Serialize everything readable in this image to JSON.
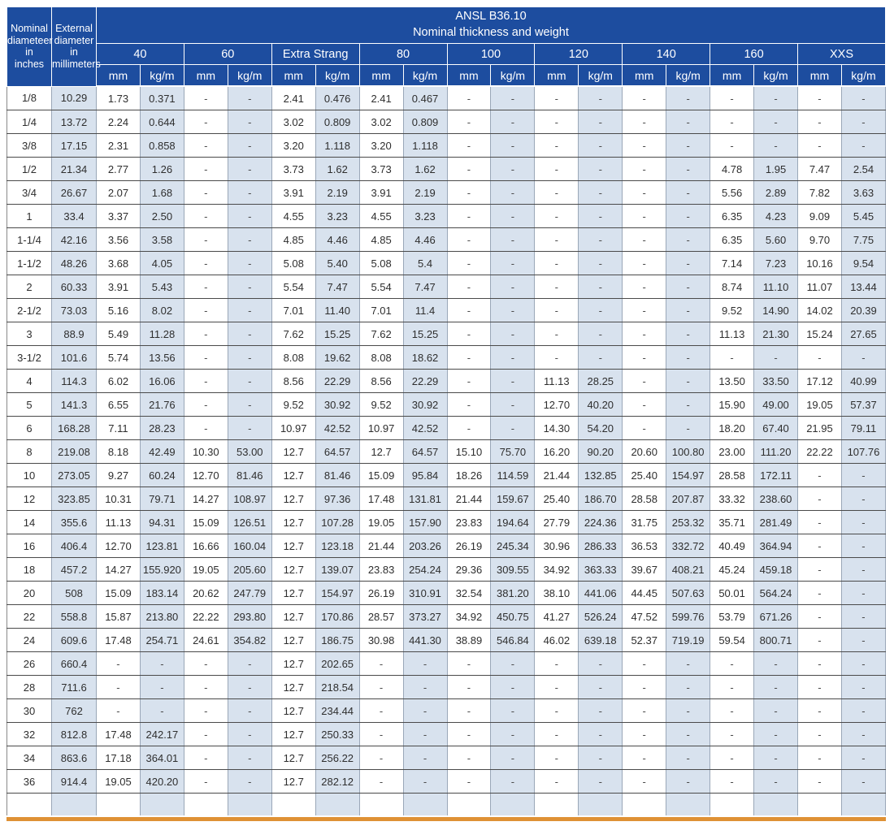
{
  "colors": {
    "header_blue": "#1d4d9f",
    "shade_blue": "#d8e2ee",
    "accent_orange": "#df9135",
    "h_border": "#4a4a4a",
    "v_border": "#9aa7b8"
  },
  "header": {
    "nominal": "Nominal\ndiameteer\nin\ninches",
    "external": "External\ndiameter\nin\nmillimeters",
    "title_line1": "ANSL B36.10",
    "title_line2": "Nominal thickness and weight"
  },
  "table": {
    "groups": [
      "40",
      "60",
      "Extra Strang",
      "80",
      "100",
      "120",
      "140",
      "160",
      "XXS"
    ],
    "units": [
      "mm",
      "kg/m"
    ],
    "rows": [
      {
        "size": "1/8",
        "od": "10.29",
        "v": [
          "1.73",
          "0.371",
          "-",
          "-",
          "2.41",
          "0.476",
          "2.41",
          "0.467",
          "-",
          "-",
          "-",
          "-",
          "-",
          "-",
          "-",
          "-",
          "-",
          "-"
        ]
      },
      {
        "size": "1/4",
        "od": "13.72",
        "v": [
          "2.24",
          "0.644",
          "-",
          "-",
          "3.02",
          "0.809",
          "3.02",
          "0.809",
          "-",
          "-",
          "-",
          "-",
          "-",
          "-",
          "-",
          "-",
          "-",
          "-"
        ]
      },
      {
        "size": "3/8",
        "od": "17.15",
        "v": [
          "2.31",
          "0.858",
          "-",
          "-",
          "3.20",
          "1.118",
          "3.20",
          "1.118",
          "-",
          "-",
          "-",
          "-",
          "-",
          "-",
          "-",
          "-",
          "-",
          "-"
        ]
      },
      {
        "size": "1/2",
        "od": "21.34",
        "v": [
          "2.77",
          "1.26",
          "-",
          "-",
          "3.73",
          "1.62",
          "3.73",
          "1.62",
          "-",
          "-",
          "-",
          "-",
          "-",
          "-",
          "4.78",
          "1.95",
          "7.47",
          "2.54"
        ]
      },
      {
        "size": "3/4",
        "od": "26.67",
        "v": [
          "2.07",
          "1.68",
          "-",
          "-",
          "3.91",
          "2.19",
          "3.91",
          "2.19",
          "-",
          "-",
          "-",
          "-",
          "-",
          "-",
          "5.56",
          "2.89",
          "7.82",
          "3.63"
        ]
      },
      {
        "size": "1",
        "od": "33.4",
        "v": [
          "3.37",
          "2.50",
          "-",
          "-",
          "4.55",
          "3.23",
          "4.55",
          "3.23",
          "-",
          "-",
          "-",
          "-",
          "-",
          "-",
          "6.35",
          "4.23",
          "9.09",
          "5.45"
        ]
      },
      {
        "size": "1-1/4",
        "od": "42.16",
        "v": [
          "3.56",
          "3.58",
          "-",
          "-",
          "4.85",
          "4.46",
          "4.85",
          "4.46",
          "-",
          "-",
          "-",
          "-",
          "-",
          "-",
          "6.35",
          "5.60",
          "9.70",
          "7.75"
        ]
      },
      {
        "size": "1-1/2",
        "od": "48.26",
        "v": [
          "3.68",
          "4.05",
          "-",
          "-",
          "5.08",
          "5.40",
          "5.08",
          "5.4",
          "-",
          "-",
          "-",
          "-",
          "-",
          "-",
          "7.14",
          "7.23",
          "10.16",
          "9.54"
        ]
      },
      {
        "size": "2",
        "od": "60.33",
        "v": [
          "3.91",
          "5.43",
          "-",
          "-",
          "5.54",
          "7.47",
          "5.54",
          "7.47",
          "-",
          "-",
          "-",
          "-",
          "-",
          "-",
          "8.74",
          "11.10",
          "11.07",
          "13.44"
        ]
      },
      {
        "size": "2-1/2",
        "od": "73.03",
        "v": [
          "5.16",
          "8.02",
          "-",
          "-",
          "7.01",
          "11.40",
          "7.01",
          "11.4",
          "-",
          "-",
          "-",
          "-",
          "-",
          "-",
          "9.52",
          "14.90",
          "14.02",
          "20.39"
        ]
      },
      {
        "size": "3",
        "od": "88.9",
        "v": [
          "5.49",
          "11.28",
          "-",
          "-",
          "7.62",
          "15.25",
          "7.62",
          "15.25",
          "-",
          "-",
          "-",
          "-",
          "-",
          "-",
          "11.13",
          "21.30",
          "15.24",
          "27.65"
        ]
      },
      {
        "size": "3-1/2",
        "od": "101.6",
        "v": [
          "5.74",
          "13.56",
          "-",
          "-",
          "8.08",
          "19.62",
          "8.08",
          "18.62",
          "-",
          "-",
          "-",
          "-",
          "-",
          "-",
          "-",
          "-",
          "-",
          "-"
        ]
      },
      {
        "size": "4",
        "od": "114.3",
        "v": [
          "6.02",
          "16.06",
          "-",
          "-",
          "8.56",
          "22.29",
          "8.56",
          "22.29",
          "-",
          "-",
          "11.13",
          "28.25",
          "-",
          "-",
          "13.50",
          "33.50",
          "17.12",
          "40.99"
        ]
      },
      {
        "size": "5",
        "od": "141.3",
        "v": [
          "6.55",
          "21.76",
          "-",
          "-",
          "9.52",
          "30.92",
          "9.52",
          "30.92",
          "-",
          "-",
          "12.70",
          "40.20",
          "-",
          "-",
          "15.90",
          "49.00",
          "19.05",
          "57.37"
        ]
      },
      {
        "size": "6",
        "od": "168.28",
        "v": [
          "7.11",
          "28.23",
          "-",
          "-",
          "10.97",
          "42.52",
          "10.97",
          "42.52",
          "-",
          "-",
          "14.30",
          "54.20",
          "-",
          "-",
          "18.20",
          "67.40",
          "21.95",
          "79.11"
        ]
      },
      {
        "size": "8",
        "od": "219.08",
        "v": [
          "8.18",
          "42.49",
          "10.30",
          "53.00",
          "12.7",
          "64.57",
          "12.7",
          "64.57",
          "15.10",
          "75.70",
          "16.20",
          "90.20",
          "20.60",
          "100.80",
          "23.00",
          "111.20",
          "22.22",
          "107.76"
        ]
      },
      {
        "size": "10",
        "od": "273.05",
        "v": [
          "9.27",
          "60.24",
          "12.70",
          "81.46",
          "12.7",
          "81.46",
          "15.09",
          "95.84",
          "18.26",
          "114.59",
          "21.44",
          "132.85",
          "25.40",
          "154.97",
          "28.58",
          "172.11",
          "-",
          "-"
        ]
      },
      {
        "size": "12",
        "od": "323.85",
        "v": [
          "10.31",
          "79.71",
          "14.27",
          "108.97",
          "12.7",
          "97.36",
          "17.48",
          "131.81",
          "21.44",
          "159.67",
          "25.40",
          "186.70",
          "28.58",
          "207.87",
          "33.32",
          "238.60",
          "-",
          "-"
        ]
      },
      {
        "size": "14",
        "od": "355.6",
        "v": [
          "11.13",
          "94.31",
          "15.09",
          "126.51",
          "12.7",
          "107.28",
          "19.05",
          "157.90",
          "23.83",
          "194.64",
          "27.79",
          "224.36",
          "31.75",
          "253.32",
          "35.71",
          "281.49",
          "-",
          "-"
        ]
      },
      {
        "size": "16",
        "od": "406.4",
        "v": [
          "12.70",
          "123.81",
          "16.66",
          "160.04",
          "12.7",
          "123.18",
          "21.44",
          "203.26",
          "26.19",
          "245.34",
          "30.96",
          "286.33",
          "36.53",
          "332.72",
          "40.49",
          "364.94",
          "-",
          "-"
        ]
      },
      {
        "size": "18",
        "od": "457.2",
        "v": [
          "14.27",
          "155.920",
          "19.05",
          "205.60",
          "12.7",
          "139.07",
          "23.83",
          "254.24",
          "29.36",
          "309.55",
          "34.92",
          "363.33",
          "39.67",
          "408.21",
          "45.24",
          "459.18",
          "-",
          "-"
        ]
      },
      {
        "size": "20",
        "od": "508",
        "v": [
          "15.09",
          "183.14",
          "20.62",
          "247.79",
          "12.7",
          "154.97",
          "26.19",
          "310.91",
          "32.54",
          "381.20",
          "38.10",
          "441.06",
          "44.45",
          "507.63",
          "50.01",
          "564.24",
          "-",
          "-"
        ]
      },
      {
        "size": "22",
        "od": "558.8",
        "v": [
          "15.87",
          "213.80",
          "22.22",
          "293.80",
          "12.7",
          "170.86",
          "28.57",
          "373.27",
          "34.92",
          "450.75",
          "41.27",
          "526.24",
          "47.52",
          "599.76",
          "53.79",
          "671.26",
          "-",
          "-"
        ]
      },
      {
        "size": "24",
        "od": "609.6",
        "v": [
          "17.48",
          "254.71",
          "24.61",
          "354.82",
          "12.7",
          "186.75",
          "30.98",
          "441.30",
          "38.89",
          "546.84",
          "46.02",
          "639.18",
          "52.37",
          "719.19",
          "59.54",
          "800.71",
          "-",
          "-"
        ]
      },
      {
        "size": "26",
        "od": "660.4",
        "v": [
          "-",
          "-",
          "-",
          "-",
          "12.7",
          "202.65",
          "-",
          "-",
          "-",
          "-",
          "-",
          "-",
          "-",
          "-",
          "-",
          "-",
          "-",
          "-"
        ]
      },
      {
        "size": "28",
        "od": "711.6",
        "v": [
          "-",
          "-",
          "-",
          "-",
          "12.7",
          "218.54",
          "-",
          "-",
          "-",
          "-",
          "-",
          "-",
          "-",
          "-",
          "-",
          "-",
          "-",
          "-"
        ]
      },
      {
        "size": "30",
        "od": "762",
        "v": [
          "-",
          "-",
          "-",
          "-",
          "12.7",
          "234.44",
          "-",
          "-",
          "-",
          "-",
          "-",
          "-",
          "-",
          "-",
          "-",
          "-",
          "-",
          "-"
        ]
      },
      {
        "size": "32",
        "od": "812.8",
        "v": [
          "17.48",
          "242.17",
          "-",
          "-",
          "12.7",
          "250.33",
          "-",
          "-",
          "-",
          "-",
          "-",
          "-",
          "-",
          "-",
          "-",
          "-",
          "-",
          "-"
        ]
      },
      {
        "size": "34",
        "od": "863.6",
        "v": [
          "17.18",
          "364.01",
          "-",
          "-",
          "12.7",
          "256.22",
          "-",
          "-",
          "-",
          "-",
          "-",
          "-",
          "-",
          "-",
          "-",
          "-",
          "-",
          "-"
        ]
      },
      {
        "size": "36",
        "od": "914.4",
        "v": [
          "19.05",
          "420.20",
          "-",
          "-",
          "12.7",
          "282.12",
          "-",
          "-",
          "-",
          "-",
          "-",
          "-",
          "-",
          "-",
          "-",
          "-",
          "-",
          "-"
        ]
      }
    ],
    "has_trailing_empty_row": true
  }
}
